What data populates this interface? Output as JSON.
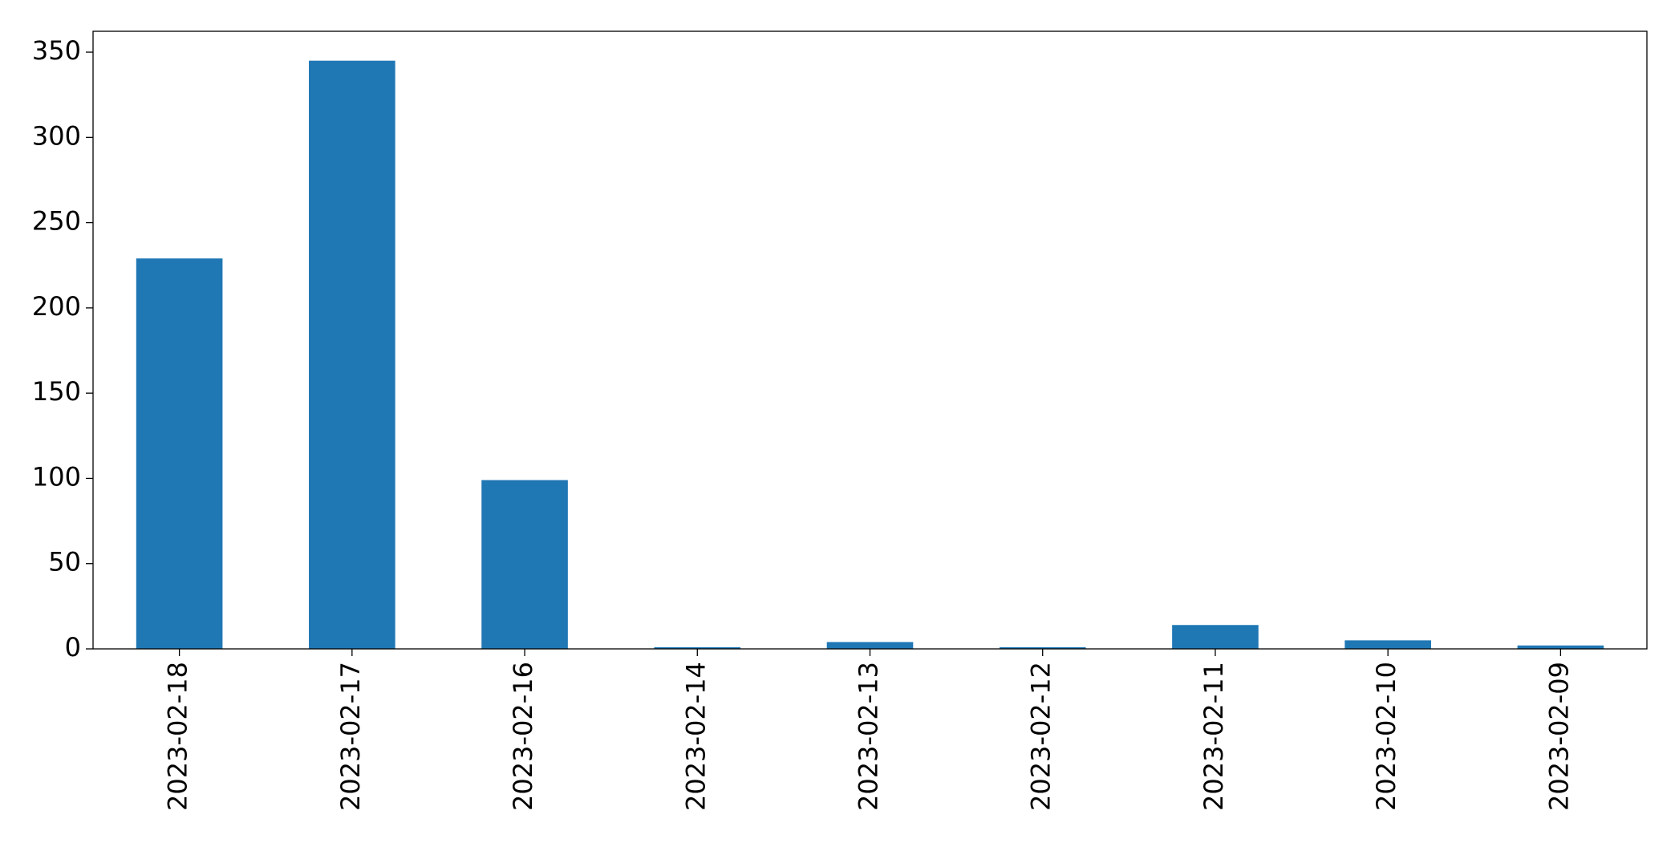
{
  "chart_data": {
    "type": "bar",
    "categories": [
      "2023-02-18",
      "2023-02-17",
      "2023-02-16",
      "2023-02-14",
      "2023-02-13",
      "2023-02-12",
      "2023-02-11",
      "2023-02-10",
      "2023-02-09"
    ],
    "values": [
      229,
      345,
      99,
      1,
      4,
      1,
      14,
      5,
      2
    ],
    "color": "#1f77b4",
    "ylim": [
      0,
      362.25
    ],
    "yticks": [
      0,
      50,
      100,
      150,
      200,
      250,
      300,
      350
    ],
    "grid": false
  }
}
